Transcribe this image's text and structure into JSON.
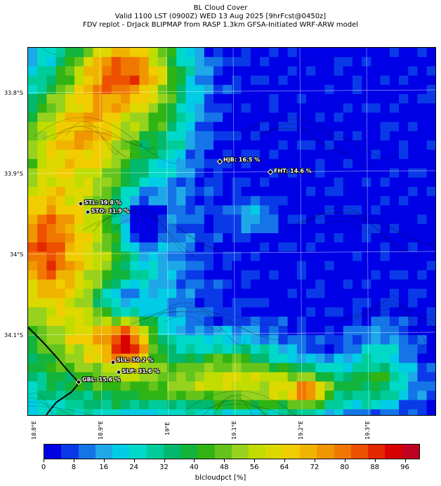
{
  "title_lines": [
    "BL Cloud Cover",
    "Valid 1100 LST (0900Z) WED 13 Aug 2025 [9hrFcst@0450z]",
    "FDV replot - DrJack BLIPMAP from RASP 1.3km GFSA-Initiated WRF-ARW model"
  ],
  "lat_labels": [
    "33.8°S",
    "33.9°S",
    "34°S",
    "34.1°S"
  ],
  "lon_labels": [
    "18.8°E",
    "18.9°E",
    "19°E",
    "19.1°E",
    "19.2°E",
    "19.3°E"
  ],
  "stations": [
    {
      "label": "HJB: 16.5 %"
    },
    {
      "label": "FHT: 14.6 %"
    },
    {
      "label": "STL: 39.8 %"
    },
    {
      "label": "STO: 31.9 %"
    },
    {
      "label": "SLL: 50.2 %"
    },
    {
      "label": "SLP: 31.6 %"
    },
    {
      "label": "GBL: 15.6 %"
    }
  ],
  "colorbar": {
    "label": "blcloudpct [%]",
    "ticks": [
      "0",
      "8",
      "16",
      "24",
      "32",
      "40",
      "48",
      "56",
      "64",
      "72",
      "80",
      "88",
      "96"
    ],
    "colors": [
      "#0000e6",
      "#0a3ae8",
      "#1474e8",
      "#1fa8e8",
      "#00cce6",
      "#00d9c8",
      "#00cc99",
      "#00b86e",
      "#12b43c",
      "#30b414",
      "#64c41c",
      "#96d21e",
      "#c0dc00",
      "#dcd800",
      "#f0cc00",
      "#f0b400",
      "#f09600",
      "#f07800",
      "#ec5000",
      "#e42800",
      "#d80000",
      "#c00020"
    ]
  }
}
